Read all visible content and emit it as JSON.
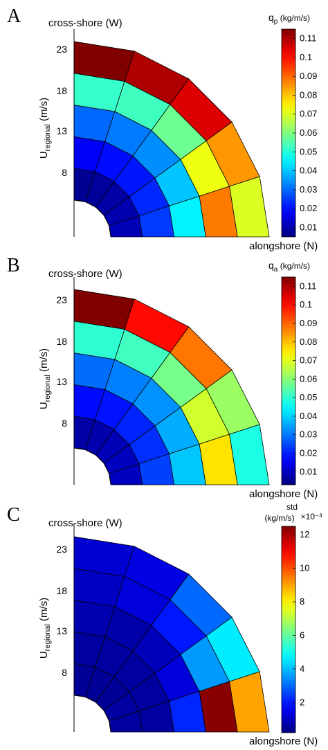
{
  "chart_data": [
    {
      "type": "heatmap",
      "panel": "A",
      "xlabel": "alongshore (N)",
      "ylabel_main": "U",
      "ylabel_sub": "regional",
      "ylabel_unit": " (m/s)",
      "top_label": "cross-shore (W)",
      "y_ticks": [
        "23",
        "18",
        "13",
        "8"
      ],
      "colorbar": {
        "label_main": "q",
        "label_sub": "p",
        "label_unit": " (kg/m/s)",
        "exponent": "",
        "range": [
          0.005,
          0.115
        ],
        "ticks": [
          "0.11",
          "0.1",
          "0.09",
          "0.08",
          "0.07",
          "0.06",
          "0.05",
          "0.04",
          "0.03",
          "0.02",
          "0.01"
        ]
      },
      "values": [
        [
          0.004,
          0.005,
          0.005,
          0.006,
          0.006,
          0.006
        ],
        [
          0.007,
          0.008,
          0.009,
          0.01,
          0.011,
          0.012
        ],
        [
          0.018,
          0.02,
          0.021,
          0.023,
          0.025,
          0.027
        ],
        [
          0.03,
          0.032,
          0.034,
          0.04,
          0.045,
          0.048
        ],
        [
          0.052,
          0.053,
          0.058,
          0.072,
          0.088,
          0.1
        ],
        [
          0.117,
          0.11,
          0.105,
          0.085,
          0.07,
          0.052
        ]
      ]
    },
    {
      "type": "heatmap",
      "panel": "B",
      "xlabel": "alongshore (N)",
      "ylabel_main": "U",
      "ylabel_sub": "regional",
      "ylabel_unit": " (m/s)",
      "top_label": "cross-shore (W)",
      "y_ticks": [
        "23",
        "18",
        "13",
        "8"
      ],
      "colorbar": {
        "label_main": "q",
        "label_sub": "a",
        "label_unit": " (kg/m/s)",
        "exponent": "",
        "range": [
          0.003,
          0.115
        ],
        "ticks": [
          "0.11",
          "0.1",
          "0.09",
          "0.08",
          "0.07",
          "0.06",
          "0.05",
          "0.04",
          "0.03",
          "0.02",
          "0.01"
        ]
      },
      "values": [
        [
          0.004,
          0.004,
          0.005,
          0.005,
          0.005,
          0.006
        ],
        [
          0.007,
          0.008,
          0.009,
          0.01,
          0.01,
          0.011
        ],
        [
          0.018,
          0.019,
          0.021,
          0.022,
          0.024,
          0.026
        ],
        [
          0.029,
          0.031,
          0.033,
          0.036,
          0.039,
          0.042
        ],
        [
          0.05,
          0.052,
          0.058,
          0.068,
          0.076,
          0.082
        ],
        [
          0.118,
          0.1,
          0.088,
          0.062,
          0.048,
          0.042
        ]
      ]
    },
    {
      "type": "heatmap",
      "panel": "C",
      "xlabel": "alongshore (N)",
      "ylabel_main": "U",
      "ylabel_sub": "regional",
      "ylabel_unit": " (m/s)",
      "top_label": "cross-shore (W)",
      "y_ticks": [
        "23",
        "18",
        "13",
        "8"
      ],
      "colorbar": {
        "label_main": "std",
        "label_sub": "",
        "label_unit": "(kg/m/s)",
        "exponent": "×10⁻³",
        "range": [
          0.2,
          12.5
        ],
        "ticks": [
          "12",
          "10",
          "8",
          "6",
          "4",
          "2"
        ]
      },
      "values": [
        [
          0.4,
          0.4,
          0.4,
          0.5,
          0.5,
          0.6
        ],
        [
          0.5,
          0.5,
          0.5,
          0.6,
          0.6,
          0.8
        ],
        [
          0.6,
          0.6,
          0.6,
          0.6,
          0.6,
          1.0
        ],
        [
          0.8,
          0.7,
          0.9,
          1.3,
          2.2,
          3.4
        ],
        [
          1.0,
          1.3,
          2.0,
          3.6,
          12.4,
          5.0
        ],
        [
          1.2,
          1.4,
          3.0,
          4.6,
          9.0,
          6.0
        ]
      ]
    }
  ]
}
